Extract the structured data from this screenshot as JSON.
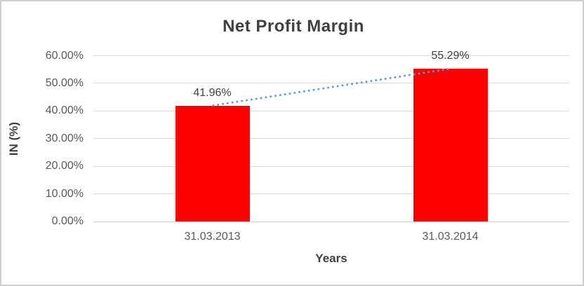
{
  "chart_data": {
    "type": "bar",
    "title": "Net Profit Margin",
    "xlabel": "Years",
    "ylabel": "IN (%)",
    "categories": [
      "31.03.2013",
      "31.03.2014"
    ],
    "values": [
      41.96,
      55.29
    ],
    "data_labels": [
      "41.96%",
      "55.29%"
    ],
    "ylim": [
      0,
      60
    ],
    "ytick_step": 10,
    "ytick_labels": [
      "0.00%",
      "10.00%",
      "20.00%",
      "30.00%",
      "40.00%",
      "50.00%",
      "60.00%"
    ],
    "grid": "horizontal-on",
    "legend": "none",
    "trendline": {
      "type": "linear",
      "style": "dotted",
      "color": "#5b9bd5",
      "from_value": 41.96,
      "to_value": 55.29
    },
    "colors": {
      "bar": "#ff0000",
      "gridline": "#d9d9d9",
      "axis_text": "#595959",
      "title_text": "#404040",
      "data_label_text": "#404040",
      "trendline": "#5b9bd5",
      "border": "#d0cece",
      "background": "#ffffff"
    }
  }
}
